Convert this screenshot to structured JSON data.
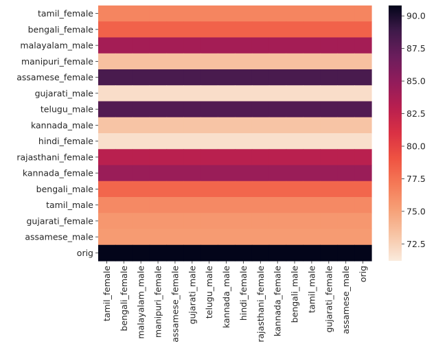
{
  "chart_data": {
    "type": "heatmap",
    "title": "",
    "xlabel": "",
    "ylabel": "",
    "rows": [
      "tamil_female",
      "bengali_female",
      "malayalam_male",
      "manipuri_female",
      "assamese_female",
      "gujarati_male",
      "telugu_male",
      "kannada_male",
      "hindi_female",
      "rajasthani_female",
      "kannada_female",
      "bengali_male",
      "tamil_male",
      "gujarati_female",
      "assamese_male",
      "orig"
    ],
    "columns": [
      "tamil_female",
      "bengali_female",
      "malayalam_male",
      "manipuri_female",
      "assamese_female",
      "gujarati_male",
      "telugu_male",
      "kannada_male",
      "hindi_female",
      "rajasthani_female",
      "kannada_female",
      "bengali_male",
      "tamil_male",
      "gujarati_female",
      "assamese_male",
      "orig"
    ],
    "row_values": [
      76.5,
      78.3,
      84.0,
      73.4,
      88.4,
      71.9,
      88.0,
      73.2,
      71.8,
      82.9,
      84.5,
      78.1,
      76.3,
      75.6,
      75.4,
      90.8
    ],
    "note": "each row has a constant value across all columns",
    "colorbar": {
      "min": 71.2,
      "max": 90.8,
      "ticks": [
        "72.5",
        "75.0",
        "77.5",
        "80.0",
        "82.5",
        "85.0",
        "87.5",
        "90.0"
      ],
      "tick_values": [
        72.5,
        75.0,
        77.5,
        80.0,
        82.5,
        85.0,
        87.5,
        90.0
      ],
      "colormap": "rocket_r"
    }
  }
}
